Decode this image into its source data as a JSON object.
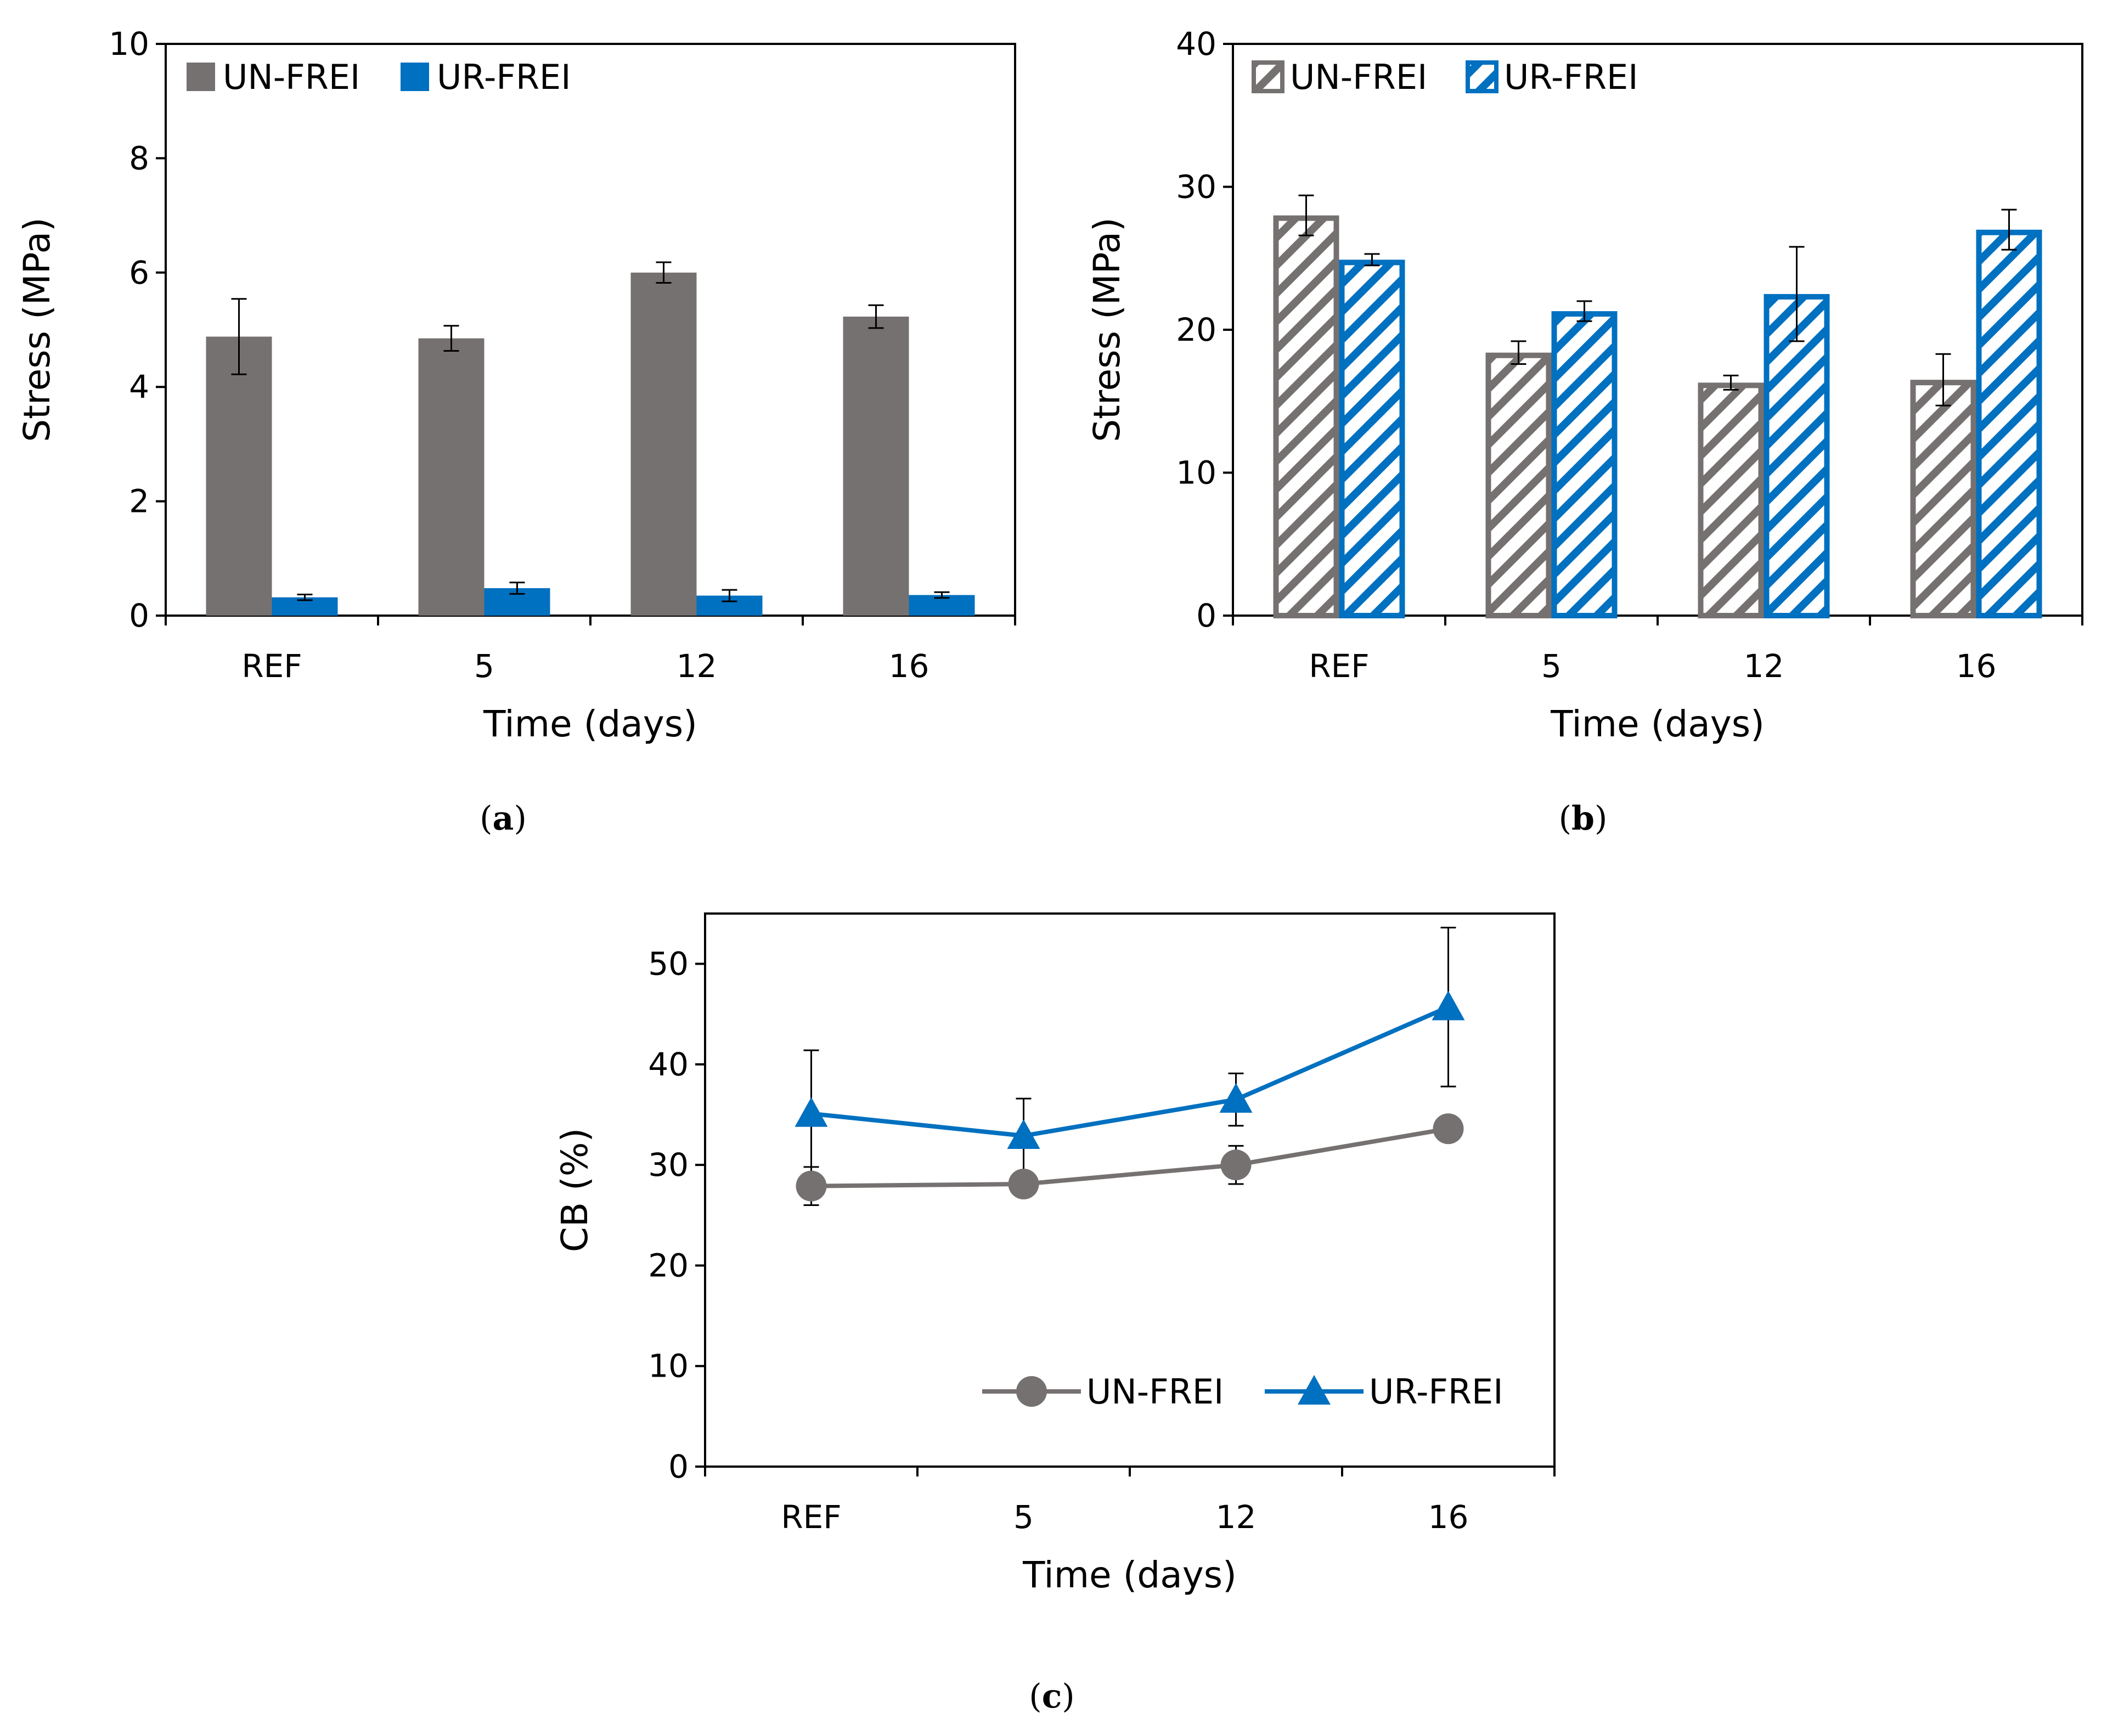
{
  "colors": {
    "un_frei": "#767171",
    "ur_frei": "#0070C0",
    "axis": "#000000",
    "error_bar": "#000000"
  },
  "chart_data": [
    {
      "id": "a",
      "type": "bar",
      "caption_letter": "a",
      "caption_open": "(",
      "caption_close": ")",
      "categories": [
        "REF",
        "5",
        "12",
        "16"
      ],
      "xlabel": "Time (days)",
      "ylabel": "Stress (MPa)",
      "ylim": [
        0,
        10
      ],
      "yticks": [
        "0",
        "2",
        "4",
        "6",
        "8",
        "10"
      ],
      "ytick_values": [
        0,
        2,
        4,
        6,
        8,
        10
      ],
      "legend_position": "top-left",
      "fill": "solid",
      "series": [
        {
          "name": "UN-FREI",
          "color": "#767171",
          "values": [
            4.88,
            4.85,
            6.0,
            5.23
          ],
          "errors": [
            0.66,
            0.22,
            0.18,
            0.2
          ]
        },
        {
          "name": "UR-FREI",
          "color": "#0070C0",
          "values": [
            0.32,
            0.48,
            0.35,
            0.36
          ],
          "errors": [
            0.05,
            0.1,
            0.1,
            0.05
          ]
        }
      ]
    },
    {
      "id": "b",
      "type": "bar",
      "caption_letter": "b",
      "caption_open": "(",
      "caption_close": ")",
      "categories": [
        "REF",
        "5",
        "12",
        "16"
      ],
      "xlabel": "Time (days)",
      "ylabel": "Stress (MPa)",
      "ylim": [
        0,
        40
      ],
      "yticks": [
        "0",
        "10",
        "20",
        "30",
        "40"
      ],
      "ytick_values": [
        0,
        10,
        20,
        30,
        40
      ],
      "legend_position": "top-left",
      "fill": "hatched",
      "series": [
        {
          "name": "UN-FREI",
          "color": "#767171",
          "values": [
            28.0,
            18.4,
            16.3,
            16.5
          ],
          "errors": [
            1.4,
            0.8,
            0.5,
            1.8
          ]
        },
        {
          "name": "UR-FREI",
          "color": "#0070C0",
          "values": [
            24.9,
            21.3,
            22.5,
            27.0
          ],
          "errors": [
            0.4,
            0.7,
            3.3,
            1.4
          ]
        }
      ]
    },
    {
      "id": "c",
      "type": "line",
      "caption_letter": "c",
      "caption_open": "(",
      "caption_close": ")",
      "categories": [
        "REF",
        "5",
        "12",
        "16"
      ],
      "xlabel": "Time (days)",
      "ylabel": "CB (%)",
      "ylim": [
        0,
        55
      ],
      "yticks": [
        "0",
        "10",
        "20",
        "30",
        "40",
        "50"
      ],
      "ytick_values": [
        0,
        10,
        20,
        30,
        40,
        50
      ],
      "legend_position": "bottom-right",
      "series": [
        {
          "name": "UN-FREI",
          "color": "#767171",
          "marker": "circle",
          "values": [
            27.9,
            28.1,
            30.0,
            33.6
          ],
          "errors": [
            1.9,
            0.0,
            1.9,
            0.0
          ]
        },
        {
          "name": "UR-FREI",
          "color": "#0070C0",
          "marker": "triangle",
          "values": [
            35.1,
            32.9,
            36.5,
            45.7
          ],
          "errors": [
            6.3,
            3.7,
            2.6,
            7.9
          ]
        }
      ]
    }
  ]
}
